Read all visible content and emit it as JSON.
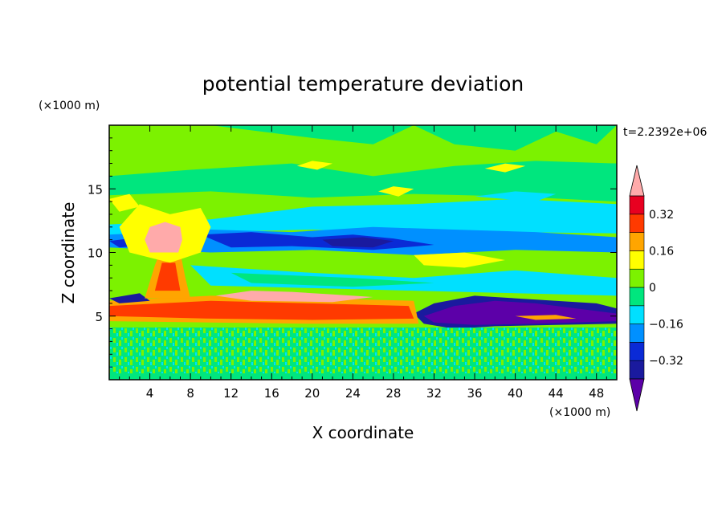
{
  "chart_data": {
    "type": "heatmap",
    "title": "potential temperature deviation",
    "xlabel": "X coordinate",
    "ylabel": "Z coordinate",
    "x_unit": "(×1000 m)",
    "y_unit": "(×1000 m)",
    "time_label": "t=2.2392e+06",
    "xlim": [
      0,
      50
    ],
    "ylim": [
      0,
      20
    ],
    "x_ticks": [
      4,
      8,
      12,
      16,
      20,
      24,
      28,
      32,
      36,
      40,
      44,
      48
    ],
    "x_tick_labels": [
      "4",
      "8",
      "12",
      "16",
      "20",
      "24",
      "28",
      "32",
      "36",
      "40",
      "44",
      "48"
    ],
    "y_ticks": [
      5,
      10,
      15
    ],
    "y_tick_labels": [
      "5",
      "10",
      "15"
    ],
    "colorbar": {
      "levels": [
        -0.4,
        -0.32,
        -0.24,
        -0.16,
        -0.08,
        0,
        0.08,
        0.16,
        0.24,
        0.32,
        0.4
      ],
      "colors": [
        "#5c00a8",
        "#1a1a9e",
        "#0a2ad6",
        "#0090ff",
        "#00e0ff",
        "#00e67e",
        "#7cf200",
        "#ffff00",
        "#ffa500",
        "#ff3a00",
        "#e80020",
        "#ffaaaa"
      ],
      "tick_labels": [
        "0.32",
        "0.16",
        "0",
        "−0.16",
        "−0.32"
      ],
      "tick_values": [
        0.32,
        0.16,
        0,
        -0.16,
        -0.32
      ],
      "extend": "both"
    },
    "regions": [
      {
        "desc": "upper band",
        "z": [
          16,
          20
        ],
        "value": 0.06
      },
      {
        "desc": "cyan band",
        "z": [
          12.5,
          14.5
        ],
        "value": -0.12
      },
      {
        "desc": "blue band",
        "z": [
          10.5,
          12
        ],
        "value": -0.22
      },
      {
        "desc": "hot core",
        "x": [
          4,
          7
        ],
        "z": [
          10,
          12
        ],
        "value": 0.45
      },
      {
        "desc": "red band",
        "x": [
          0,
          30
        ],
        "z": [
          4.5,
          6
        ],
        "value": 0.36
      },
      {
        "desc": "purple pool",
        "x": [
          30,
          50
        ],
        "z": [
          4.2,
          6.8
        ],
        "value": -0.42
      },
      {
        "desc": "noisy lower layer",
        "z": [
          0,
          4
        ],
        "value": 0.0
      }
    ]
  }
}
